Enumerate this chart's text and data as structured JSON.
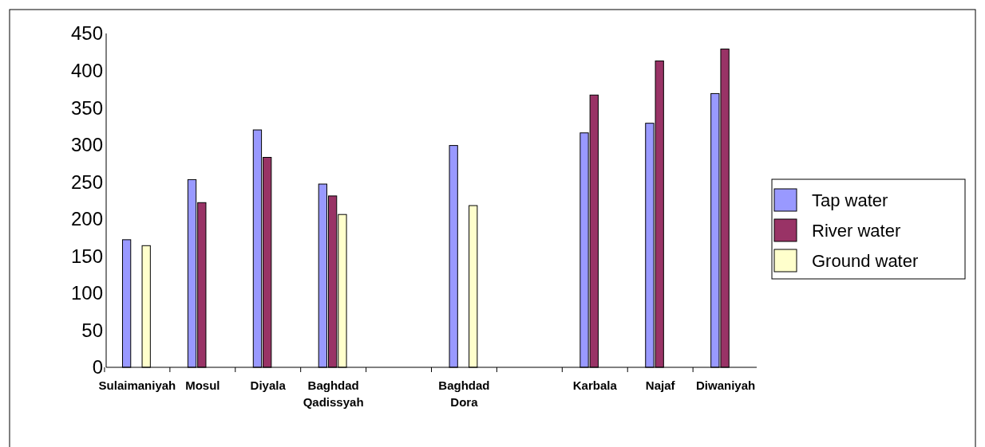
{
  "chart_data": {
    "type": "bar",
    "categories": [
      "Sulaimaniyah",
      "Mosul",
      "Diyala",
      "Baghdad Qadissyah",
      null,
      "Baghdad Dora",
      null,
      "Karbala",
      "Najaf",
      "Diwaniyah"
    ],
    "series": [
      {
        "name": "Tap water",
        "color": "#9999ff",
        "values": [
          172,
          253,
          320,
          247,
          null,
          299,
          null,
          316,
          329,
          369
        ]
      },
      {
        "name": "River water",
        "color": "#993366",
        "values": [
          null,
          222,
          283,
          231,
          null,
          null,
          null,
          367,
          413,
          429
        ]
      },
      {
        "name": "Ground water",
        "color": "#ffffcc",
        "values": [
          164,
          null,
          null,
          206,
          null,
          218,
          null,
          null,
          null,
          null
        ]
      }
    ],
    "ylim": [
      0,
      450
    ],
    "yticks": [
      0,
      50,
      100,
      150,
      200,
      250,
      300,
      350,
      400,
      450
    ],
    "grid": false,
    "legend": "right"
  }
}
